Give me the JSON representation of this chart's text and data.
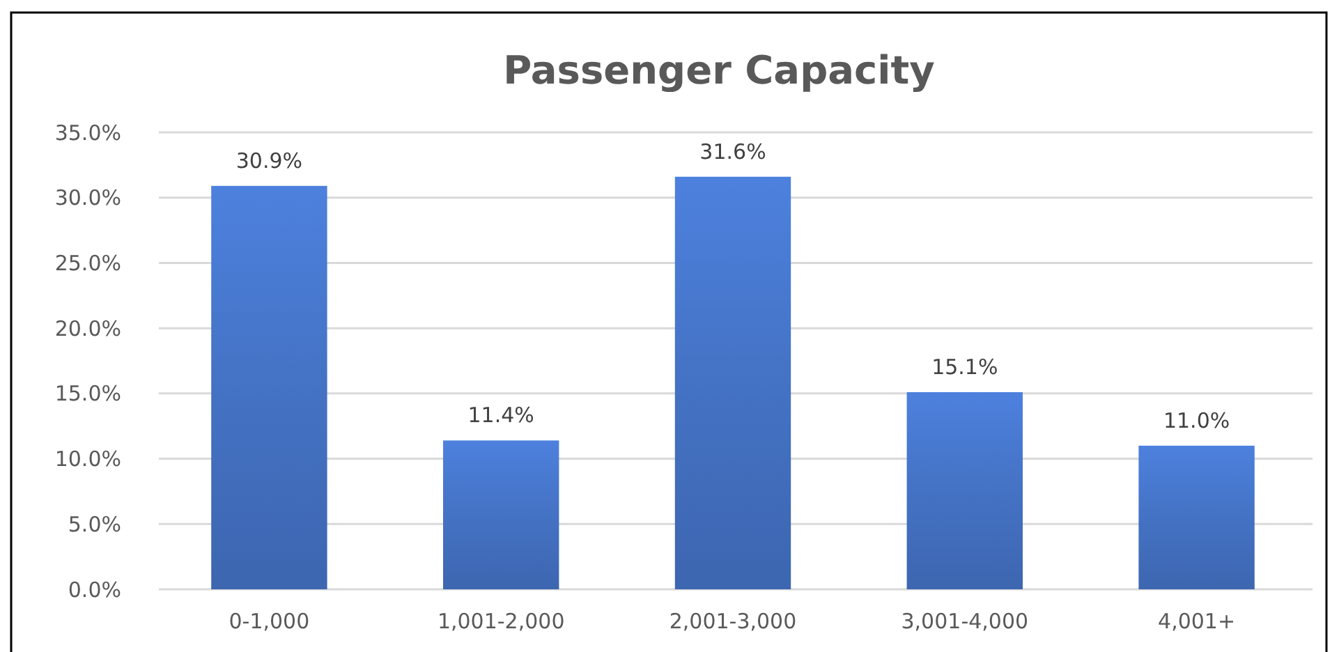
{
  "chart_data": {
    "type": "bar",
    "title": "Passenger Capacity",
    "categories": [
      "0-1,000",
      "1,001-2,000",
      "2,001-3,000",
      "3,001-4,000",
      "4,001+"
    ],
    "values": [
      30.9,
      11.4,
      31.6,
      15.1,
      11.0
    ],
    "value_labels": [
      "30.9%",
      "11.4%",
      "31.6%",
      "15.1%",
      "11.0%"
    ],
    "color": "#4472c4",
    "ylim": [
      0,
      35
    ],
    "yticks": [
      {
        "value": 0,
        "label": "0.0%"
      },
      {
        "value": 5,
        "label": "5.0%"
      },
      {
        "value": 10,
        "label": "10.0%"
      },
      {
        "value": 15,
        "label": "15.0%"
      },
      {
        "value": 20,
        "label": "20.0%"
      },
      {
        "value": 25,
        "label": "25.0%"
      },
      {
        "value": 30,
        "label": "30.0%"
      },
      {
        "value": 35,
        "label": "35.0%"
      }
    ],
    "grid": "y"
  }
}
